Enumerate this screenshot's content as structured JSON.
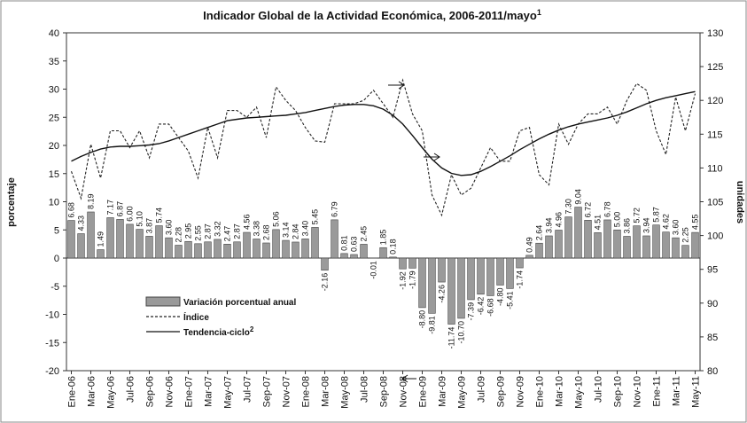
{
  "chart_data": {
    "type": "bar_line",
    "title": "Indicador Global de la Actividad Económica, 2006-2011/mayo",
    "title_note": "1",
    "ylabel": "porcentaje",
    "y2label": "unidades",
    "categories": [
      "Ene-06",
      null,
      "Mar-06",
      null,
      "May-06",
      null,
      "Jul-06",
      null,
      "Sep-06",
      null,
      "Nov-06",
      null,
      "Ene-07",
      null,
      "Mar-07",
      null,
      "May-07",
      null,
      "Jul-07",
      null,
      "Sep-07",
      null,
      "Nov-07",
      null,
      "Ene-08",
      null,
      "Mar-08",
      null,
      "May-08",
      null,
      "Jul-08",
      null,
      "Sep-08",
      null,
      "Nov-08",
      null,
      "Ene-09",
      null,
      "Mar-09",
      null,
      "May-09",
      null,
      "Jul-09",
      null,
      "Sep-09",
      null,
      "Nov-09",
      null,
      "Ene-10",
      null,
      "Mar-10",
      null,
      "May-10",
      null,
      "Jul-10",
      null,
      "Sep-10",
      null,
      "Nov-10",
      null,
      "Ene-11",
      null,
      "Mar-11",
      null,
      "May-11"
    ],
    "series": [
      {
        "name": "Variación porcentual anual",
        "color": "#9a9a9a",
        "values": [
          6.68,
          4.33,
          8.19,
          1.49,
          7.17,
          6.87,
          6.0,
          5.1,
          3.87,
          5.74,
          3.6,
          2.28,
          2.95,
          2.55,
          2.87,
          3.32,
          2.47,
          2.87,
          4.56,
          3.38,
          2.68,
          5.06,
          3.14,
          2.84,
          3.4,
          5.45,
          -2.16,
          6.79,
          0.81,
          0.63,
          2.45,
          -0.01,
          1.85,
          0.18,
          -1.92,
          -1.79,
          -8.8,
          -9.81,
          -4.26,
          -11.74,
          -10.7,
          -7.39,
          -6.42,
          -6.68,
          -4.8,
          -5.41,
          -1.74,
          0.49,
          2.64,
          3.94,
          4.96,
          7.3,
          9.04,
          6.72,
          4.51,
          6.78,
          5.0,
          3.86,
          5.72,
          3.94,
          5.87,
          4.62,
          3.6,
          2.25,
          4.55
        ],
        "value_labels": [
          "6.68",
          "4.33",
          "8.19",
          "1.49",
          "7.17",
          "6.87",
          "6.00",
          "5.10",
          "3.87",
          "5.74",
          "3.60",
          "2.28",
          "2.95",
          "2.55",
          "2.87",
          "3.32",
          "2.47",
          "2.87",
          "4.56",
          "3.38",
          "2.68",
          "5.06",
          "3.14",
          "2.84",
          "3.40",
          "5.45",
          "-2.16",
          "6.79",
          "0.81",
          "0.63",
          "2.45",
          "-0.01",
          "1.85",
          "0.18",
          "-1.92",
          "-1.79",
          "-8.80",
          "-9.81",
          "-4.26",
          "-11.74",
          "-10.70",
          "-7.39",
          "-6.42",
          "-6.68",
          "-4.80",
          "-5.41",
          "-1.74",
          "0.49",
          "2.64",
          "3.94",
          "4.96",
          "7.30",
          "9.04",
          "6.72",
          "4.51",
          "6.78",
          "5.00",
          "3.86",
          "5.72",
          "3.94",
          "5.87",
          "4.62",
          "3.60",
          "2.25",
          "4.55"
        ]
      },
      {
        "name": "Índice",
        "axis": "y2",
        "color": "#222222",
        "dashed": true,
        "values": [
          109.5,
          105.5,
          113.5,
          108.5,
          115.5,
          115.5,
          113,
          115.5,
          111.5,
          116.5,
          116.5,
          114.5,
          112.5,
          108.5,
          116,
          111.5,
          118.5,
          118.5,
          117.5,
          119,
          114.5,
          122,
          120,
          118.5,
          116,
          114,
          113.8,
          119.5,
          119.5,
          119.5,
          120,
          121.5,
          119.5,
          117.5,
          123,
          118,
          115.5,
          106,
          103,
          109,
          106,
          107,
          110,
          113,
          111,
          111,
          115.5,
          116,
          109,
          107.5,
          116.5,
          113.5,
          116.5,
          118,
          118,
          119,
          116.5,
          120,
          122.5,
          121.5,
          115.5,
          112,
          120.5,
          115.5,
          121
        ]
      },
      {
        "name": "Tendencia-ciclo",
        "note": "2",
        "axis": "y2",
        "color": "#111111",
        "dashed": false,
        "values": [
          111,
          111.7,
          112.3,
          112.8,
          113.1,
          113.2,
          113.2,
          113.3,
          113.4,
          113.6,
          114,
          114.5,
          115,
          115.5,
          116,
          116.5,
          117,
          117.2,
          117.4,
          117.5,
          117.6,
          117.7,
          117.8,
          118,
          118.2,
          118.5,
          118.8,
          119.1,
          119.3,
          119.4,
          119.4,
          119.2,
          118.7,
          117.8,
          116.5,
          114.8,
          113,
          111.3,
          110,
          109.2,
          108.9,
          109,
          109.5,
          110.2,
          111,
          111.8,
          112.7,
          113.5,
          114.3,
          115,
          115.6,
          116.1,
          116.5,
          116.8,
          117.1,
          117.4,
          117.8,
          118.3,
          118.9,
          119.5,
          120,
          120.4,
          120.7,
          121,
          121.3
        ]
      }
    ],
    "ylim": [
      -20,
      40
    ],
    "yticks": [
      -20,
      -15,
      -10,
      -5,
      0,
      5,
      10,
      15,
      20,
      25,
      30,
      35,
      40
    ],
    "y2lim": [
      80,
      130
    ],
    "y2ticks": [
      80,
      85,
      90,
      95,
      100,
      105,
      110,
      115,
      120,
      125,
      130
    ],
    "grid": false
  }
}
